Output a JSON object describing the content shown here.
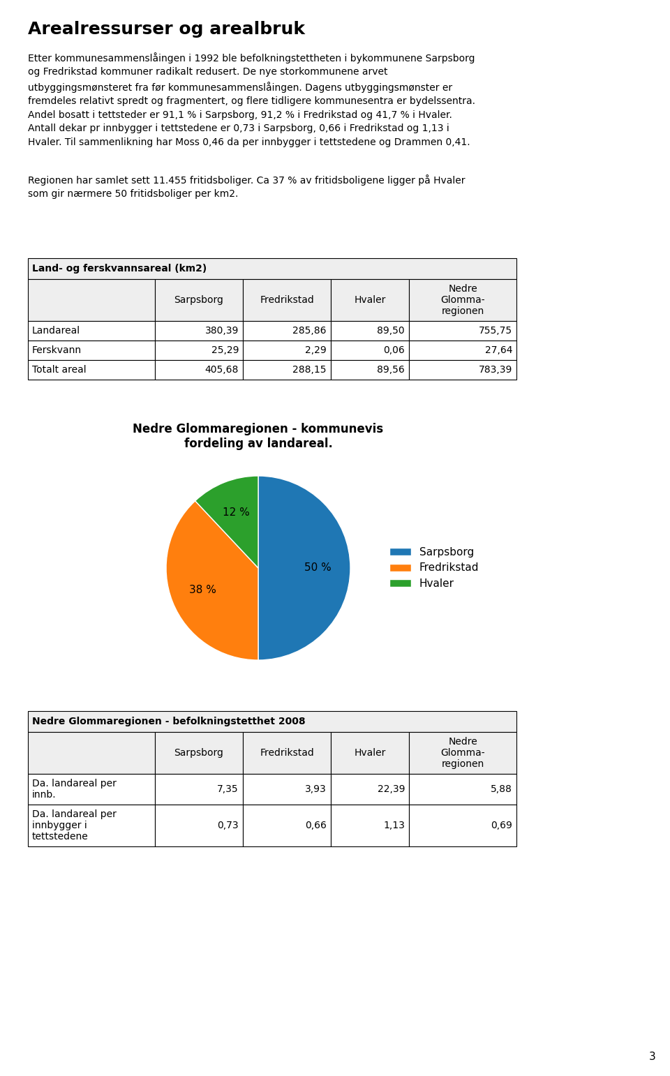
{
  "title": "Arealressurser og arealbruk",
  "annotations": [
    "Etter kommunesammenslåingen i 1992 ble befolkningstettheten i bykommunene Sarpsborg\nog Fredrikstad kommuner radikalt redusert. De nye storkommunene arvet\nutbyggingsmønsteret fra før kommunesammenslåingen. Dagens utbyggingsmønster er\nfremdeles relativt spredt og fragmentert, og flere tidligere kommunesentra er bydelssentra.\nAndel bosatt i tettsteder er 91,1 % i Sarpsborg, 91,2 % i Fredrikstad og 41,7 % i Hvaler.\nAntall dekar pr innbygger i tettstedene er 0,73 i Sarpsborg, 0,66 i Fredrikstad og 1,13 i\nHvaler. Til sammenlikning har Moss 0,46 da per innbygger i tettstedene og Drammen 0,41.",
    "Regionen har samlet sett 11.455 fritidsboliger. Ca 37 % av fritidsboligene ligger på Hvaler\nsom gir nærmere 50 fritidsboliger per km2."
  ],
  "page_number": "3",
  "chart_data": [
    {
      "type": "table",
      "title": "Land- og ferskvannsareal (km2)",
      "columns": [
        "Sarpsborg",
        "Fredrikstad",
        "Hvaler",
        "Nedre\nGlomma-\nregionen"
      ],
      "rows": [
        {
          "name": "Landareal",
          "cells": [
            "380,39",
            "285,86",
            "89,50",
            "755,75"
          ]
        },
        {
          "name": "Ferskvann",
          "cells": [
            "25,29",
            "2,29",
            "0,06",
            "27,64"
          ]
        },
        {
          "name": "Totalt areal",
          "cells": [
            "405,68",
            "288,15",
            "89,56",
            "783,39"
          ]
        }
      ]
    },
    {
      "type": "pie",
      "title": "Nedre Glommaregionen - kommunevis\nfordeling av landareal.",
      "categories": [
        "Sarpsborg",
        "Fredrikstad",
        "Hvaler"
      ],
      "values": [
        50,
        38,
        12
      ],
      "value_labels": [
        "50 %",
        "38 %",
        "12 %"
      ],
      "legend": "center right"
    },
    {
      "type": "table",
      "title": "Nedre Glommaregionen - befolkningstetthet 2008",
      "columns": [
        "Sarpsborg",
        "Fredrikstad",
        "Hvaler",
        "Nedre\nGlomma-\nregionen"
      ],
      "rows": [
        {
          "name": "Da. landareal per\ninnb.",
          "cells": [
            "7,35",
            "3,93",
            "22,39",
            "5,88"
          ]
        },
        {
          "name": "Da. landareal per\ninnbygger i\ntettstedene",
          "cells": [
            "0,73",
            "0,66",
            "1,13",
            "0,69"
          ]
        }
      ]
    }
  ]
}
